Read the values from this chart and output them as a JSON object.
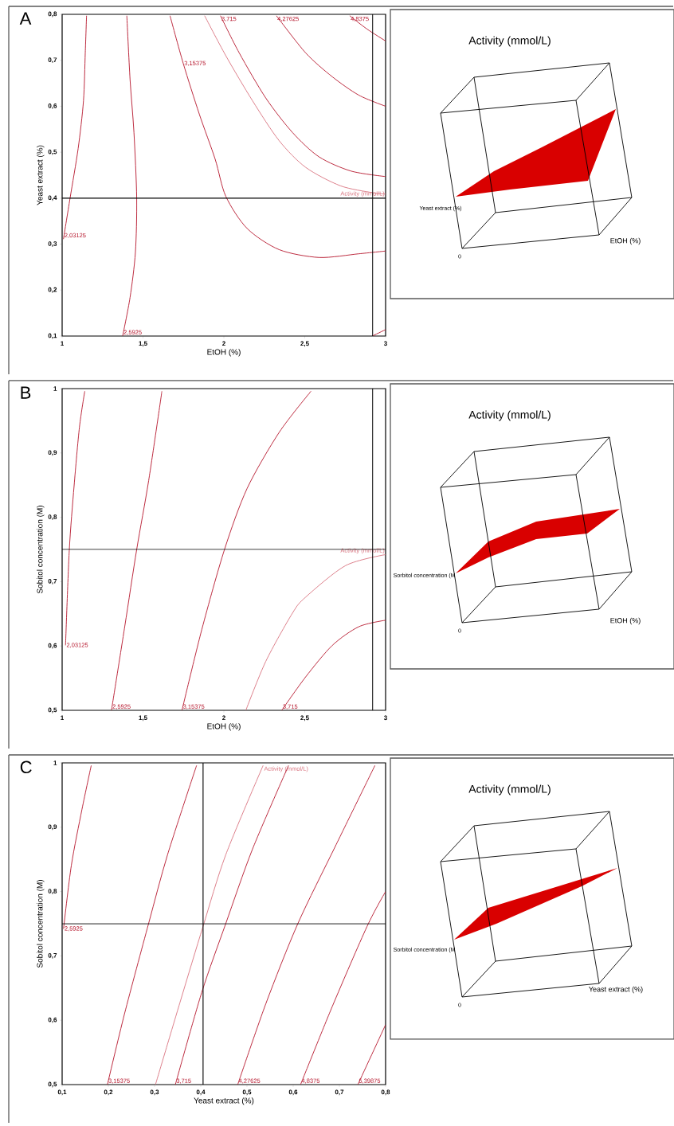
{
  "chart_data": [
    {
      "type": "line",
      "title": "A",
      "xlabel": "EtOH (%)",
      "ylabel": "Yeast extract (%)",
      "xlim": [
        1,
        3
      ],
      "ylim": [
        0.1,
        0.8
      ],
      "xticks": [
        1,
        {
          "value": 1.5,
          "label": "1,5"
        },
        2,
        {
          "value": 2.5,
          "label": "2,5"
        },
        3
      ],
      "yticks": [
        {
          "value": 0.1,
          "label": "0,1"
        },
        {
          "value": 0.2,
          "label": "0,2"
        },
        {
          "value": 0.3,
          "label": "0,3"
        },
        {
          "value": 0.4,
          "label": "0,4"
        },
        {
          "value": 0.5,
          "label": "0,5"
        },
        {
          "value": 0.6,
          "label": "0,6"
        },
        {
          "value": 0.7,
          "label": "0,7"
        },
        {
          "value": 0.8,
          "label": "0,8"
        }
      ],
      "series": [
        {
          "name": "2,03125",
          "color": "#b5152b",
          "x": [
            1.008,
            1.049,
            1.099,
            1.132,
            1.143,
            1.151
          ],
          "values": [
            0.311,
            0.4,
            0.508,
            0.612,
            0.716,
            0.797
          ]
        },
        {
          "name": "2,5925",
          "color": "#b5152b",
          "x": [
            1.374,
            1.42,
            1.453,
            1.461,
            1.444,
            1.42,
            1.4
          ],
          "values": [
            0.1,
            0.184,
            0.282,
            0.4,
            0.543,
            0.658,
            0.797
          ]
        },
        {
          "name": "3,15375",
          "color": "#b5152b",
          "x": [
            1.667,
            1.749,
            1.848,
            1.946,
            2.012,
            2.144,
            2.342,
            2.588,
            2.835,
            3.0
          ],
          "values": [
            0.797,
            0.693,
            0.583,
            0.485,
            0.404,
            0.334,
            0.288,
            0.271,
            0.279,
            0.285
          ]
        },
        {
          "name": "Activity (mmol/L)",
          "color": "#d9737f",
          "x": [
            1.881,
            2.012,
            2.177,
            2.342,
            2.506,
            2.72,
            2.918,
            3.0
          ],
          "values": [
            0.797,
            0.71,
            0.612,
            0.525,
            0.467,
            0.427,
            0.412,
            0.409
          ]
        },
        {
          "name": "3,715",
          "color": "#b5152b",
          "x": [
            1.979,
            2.095,
            2.259,
            2.424,
            2.588,
            2.786,
            3.0
          ],
          "values": [
            0.797,
            0.716,
            0.618,
            0.543,
            0.49,
            0.459,
            0.447
          ]
        },
        {
          "name": "4,27625",
          "color": "#b5152b",
          "x": [
            2.325,
            2.506,
            2.671,
            2.835,
            3.0
          ],
          "values": [
            0.797,
            0.716,
            0.664,
            0.624,
            0.6
          ]
        },
        {
          "name": "4,8375",
          "color": "#b5152b",
          "x": [
            2.778,
            2.885,
            3.0
          ],
          "values": [
            0.797,
            0.768,
            0.742
          ]
        },
        {
          "color": "#b5152b",
          "x": [
            2.918,
            3.0
          ],
          "values": [
            0.1,
            0.114
          ]
        }
      ],
      "ref_lines": [
        {
          "axis": "y",
          "value": 0.4,
          "color": "#000000"
        },
        {
          "axis": "x",
          "value": 2.92,
          "color": "#000000"
        }
      ]
    },
    {
      "type": "other",
      "title": "Activity (mmol/L)",
      "annotations": [
        "Yeast extract (%)",
        "EtOH (%)",
        "0"
      ]
    },
    {
      "type": "line",
      "title": "B",
      "xlabel": "EtOH (%)",
      "ylabel": "Sobitol concentration (M)",
      "xlim": [
        1,
        3
      ],
      "ylim": [
        0.5,
        1
      ],
      "xticks": [
        1,
        {
          "value": 1.5,
          "label": "1,5"
        },
        2,
        {
          "value": 2.5,
          "label": "2,5"
        },
        3
      ],
      "yticks": [
        {
          "value": 0.5,
          "label": "0,5"
        },
        {
          "value": 0.6,
          "label": "0,6"
        },
        {
          "value": 0.7,
          "label": "0,7"
        },
        {
          "value": 0.8,
          "label": "0,8"
        },
        {
          "value": 0.9,
          "label": "0,9"
        },
        1
      ],
      "series": [
        {
          "name": "2,03125",
          "color": "#b5152b",
          "x": [
            1.021,
            1.044,
            1.074,
            1.107,
            1.14
          ],
          "values": [
            0.601,
            0.748,
            0.849,
            0.94,
            0.996
          ]
        },
        {
          "name": "2,5925",
          "color": "#b5152b",
          "x": [
            1.305,
            1.387,
            1.461,
            1.535,
            1.617
          ],
          "values": [
            0.5,
            0.63,
            0.75,
            0.857,
            0.996
          ]
        },
        {
          "name": "3,15375",
          "color": "#b5152b",
          "x": [
            1.741,
            1.864,
            2.004,
            2.144,
            2.342,
            2.539
          ],
          "values": [
            0.5,
            0.626,
            0.75,
            0.845,
            0.932,
            0.996
          ]
        },
        {
          "name": "Activity (mmol/L)",
          "color": "#d9737f",
          "x": [
            2.136,
            2.259,
            2.424,
            2.506,
            2.753,
            3.0
          ],
          "values": [
            0.5,
            0.576,
            0.651,
            0.676,
            0.725,
            0.742
          ]
        },
        {
          "name": "3,715",
          "color": "#b5152b",
          "x": [
            2.358,
            2.506,
            2.671,
            2.835,
            3.0
          ],
          "values": [
            0.5,
            0.552,
            0.601,
            0.63,
            0.64
          ]
        }
      ],
      "ref_lines": [
        {
          "axis": "y",
          "value": 0.75,
          "color": "#000000"
        },
        {
          "axis": "x",
          "value": 2.92,
          "color": "#000000"
        }
      ]
    },
    {
      "type": "other",
      "title": "Activity (mmol/L)",
      "annotations": [
        "Sorbitol concentration (M",
        "EtOH (%)",
        "0"
      ]
    },
    {
      "type": "line",
      "title": "C",
      "xlabel": "Yeast extract (%)",
      "ylabel": "Sobitol concentration (M)",
      "xlim": [
        0.1,
        0.8
      ],
      "ylim": [
        0.5,
        1
      ],
      "xticks": [
        {
          "value": 0.1,
          "label": "0,1"
        },
        {
          "value": 0.2,
          "label": "0,2"
        },
        {
          "value": 0.3,
          "label": "0,3"
        },
        {
          "value": 0.4,
          "label": "0,4"
        },
        {
          "value": 0.5,
          "label": "0,5"
        },
        {
          "value": 0.6,
          "label": "0,6"
        },
        {
          "value": 0.7,
          "label": "0,7"
        },
        {
          "value": 0.8,
          "label": "0,8"
        }
      ],
      "yticks": [
        {
          "value": 0.5,
          "label": "0,5"
        },
        {
          "value": 0.6,
          "label": "0,6"
        },
        {
          "value": 0.7,
          "label": "0,7"
        },
        {
          "value": 0.8,
          "label": "0,8"
        },
        {
          "value": 0.9,
          "label": "0,9"
        },
        1
      ],
      "series": [
        {
          "name": "2,5925",
          "color": "#b5152b",
          "x": [
            0.103,
            0.12,
            0.143,
            0.163
          ],
          "values": [
            0.742,
            0.841,
            0.928,
            0.996
          ]
        },
        {
          "name": "3,15375",
          "color": "#b5152b",
          "x": [
            0.198,
            0.235,
            0.287,
            0.328,
            0.391
          ],
          "values": [
            0.5,
            0.61,
            0.75,
            0.857,
            0.996
          ]
        },
        {
          "name": "Activity (mmol/L)",
          "color": "#d9737f",
          "x": [
            0.302,
            0.356,
            0.405,
            0.454,
            0.535
          ],
          "values": [
            0.5,
            0.63,
            0.746,
            0.857,
            0.996
          ]
        },
        {
          "name": "3,715",
          "color": "#b5152b",
          "x": [
            0.345,
            0.402,
            0.454,
            0.512,
            0.59
          ],
          "values": [
            0.5,
            0.643,
            0.75,
            0.866,
            0.996
          ]
        },
        {
          "name": "4,27625",
          "color": "#b5152b",
          "x": [
            0.48,
            0.541,
            0.61,
            0.691,
            0.777
          ],
          "values": [
            0.5,
            0.626,
            0.75,
            0.87,
            0.996
          ]
        },
        {
          "name": "4,8375",
          "color": "#b5152b",
          "x": [
            0.616,
            0.685,
            0.76,
            0.8
          ],
          "values": [
            0.5,
            0.622,
            0.746,
            0.8
          ]
        },
        {
          "name": "5,39875",
          "color": "#b5152b",
          "x": [
            0.74,
            0.8
          ],
          "values": [
            0.5,
            0.593
          ]
        }
      ],
      "ref_lines": [
        {
          "axis": "x",
          "value": 0.405,
          "color": "#000000"
        },
        {
          "axis": "y",
          "value": 0.75,
          "color": "#000000"
        }
      ]
    },
    {
      "type": "other",
      "title": "Activity (mmol/L)",
      "annotations": [
        "Sorbitol concentration (M",
        "Yeast extract (%)",
        "0"
      ]
    }
  ]
}
